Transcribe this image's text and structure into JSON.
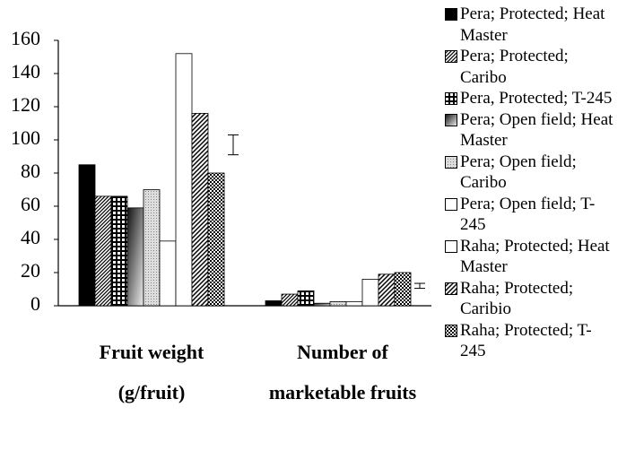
{
  "chart_data": {
    "type": "bar",
    "categories": [
      "Fruit weight (g/fruit)",
      "Number of marketable fruits"
    ],
    "series": [
      {
        "name": "Pera; Protected; Heat Master",
        "values": [
          85,
          3
        ]
      },
      {
        "name": "Pera; Protected; Caribo",
        "values": [
          66,
          7
        ]
      },
      {
        "name": "Pera, Protected; T-245",
        "values": [
          66,
          9
        ]
      },
      {
        "name": "Pera; Open field; Heat Master",
        "values": [
          59,
          1.5
        ]
      },
      {
        "name": "Pera; Open field; Caribo",
        "values": [
          70,
          2.5
        ]
      },
      {
        "name": "Pera; Open field; T-245",
        "values": [
          39,
          2.5
        ]
      },
      {
        "name": "Raha; Protected; Heat Master",
        "values": [
          152,
          16
        ]
      },
      {
        "name": "Raha; Protected; Caribio",
        "values": [
          116,
          19
        ]
      },
      {
        "name": "Raha; Protected; T-245",
        "values": [
          80,
          20
        ]
      }
    ],
    "error_bars": [
      {
        "value": 97,
        "error": 6
      },
      {
        "value": 12,
        "error": 1.5
      }
    ],
    "ylim": [
      0,
      160
    ],
    "yticks": [
      0,
      20,
      40,
      60,
      80,
      100,
      120,
      140,
      160
    ],
    "legend": "right"
  }
}
